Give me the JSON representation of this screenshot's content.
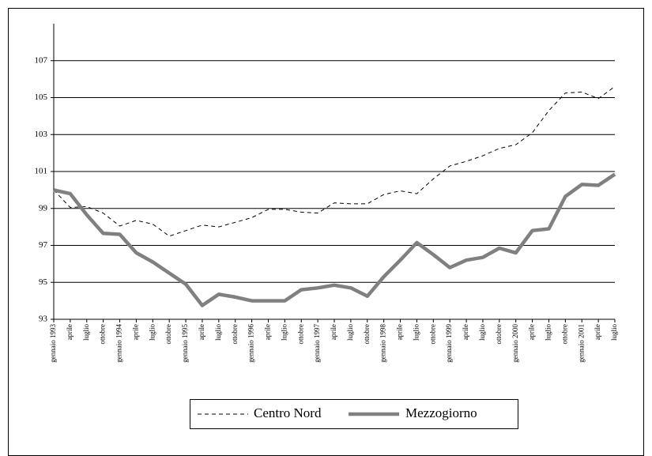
{
  "chart_data": {
    "type": "line",
    "categories": [
      "gennaio 1993",
      "aprile",
      "luglio",
      "ottobre",
      "gennaio 1994",
      "aprile",
      "luglio",
      "ottobre",
      "gennaio 1995",
      "aprile",
      "luglio",
      "ottobre",
      "gennaio 1996",
      "aprile",
      "luglio",
      "ottobre",
      "gennaio 1997",
      "aprile",
      "luglio",
      "ottobre",
      "gennaio 1998",
      "aprile",
      "luglio",
      "ottobre",
      "gennaio 1999",
      "aprile",
      "luglio",
      "ottobre",
      "gennaio 2000",
      "aprile",
      "luglio",
      "ottobre",
      "gennaio 2001",
      "aprile",
      "luglio"
    ],
    "series": [
      {
        "name": "Centro Nord",
        "color": "#000000",
        "dashed": true,
        "values": [
          100.0,
          99.05,
          99.1,
          98.75,
          98.05,
          98.35,
          98.15,
          97.5,
          97.8,
          98.1,
          98.0,
          98.25,
          98.5,
          98.95,
          98.95,
          98.8,
          98.75,
          99.3,
          99.25,
          99.25,
          99.75,
          99.95,
          99.8,
          100.6,
          101.3,
          101.55,
          101.85,
          102.25,
          102.45,
          103.1,
          104.3,
          105.25,
          105.3,
          104.95,
          105.6
        ]
      },
      {
        "name": "Mezzogiorno",
        "color": "#808080",
        "dashed": false,
        "values": [
          100.0,
          99.8,
          98.65,
          97.65,
          97.6,
          96.6,
          96.1,
          95.5,
          94.9,
          93.75,
          94.35,
          94.2,
          94.0,
          94.0,
          94.0,
          94.6,
          94.7,
          94.85,
          94.7,
          94.25,
          95.3,
          96.2,
          97.15,
          96.5,
          95.8,
          96.2,
          96.35,
          96.85,
          96.6,
          97.8,
          97.9,
          99.65,
          100.3,
          100.25,
          100.85
        ]
      }
    ],
    "ylim": [
      93,
      109
    ],
    "yticks": [
      93,
      95,
      97,
      99,
      101,
      103,
      105,
      107
    ],
    "grid": true
  }
}
